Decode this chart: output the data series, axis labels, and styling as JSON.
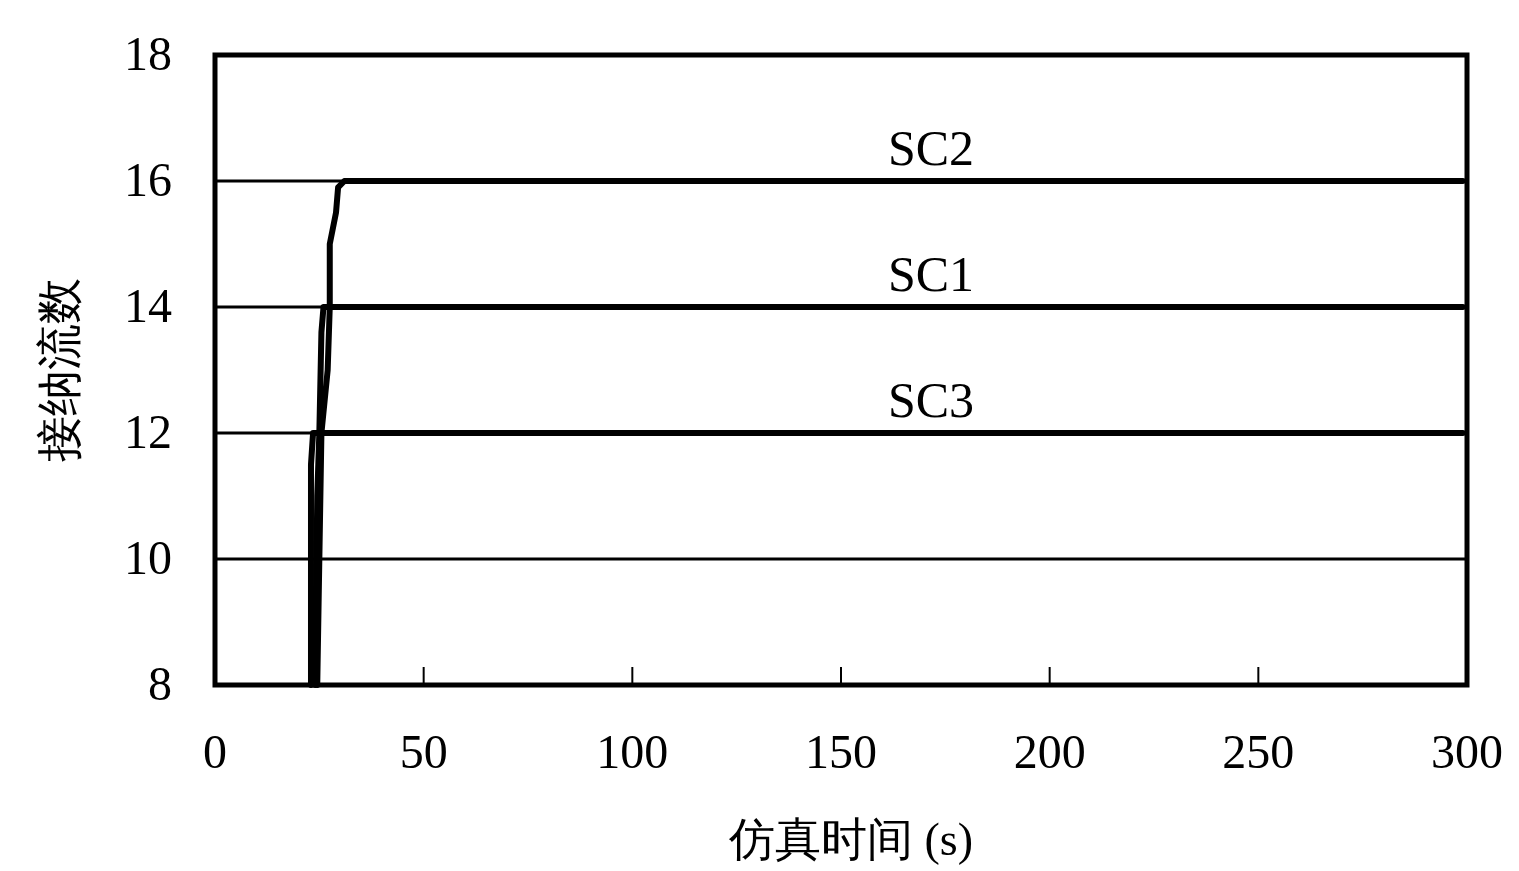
{
  "chart_data": {
    "type": "line",
    "xlabel": "仿真时间 (s)",
    "ylabel": "接纳流数",
    "xlim": [
      0,
      300
    ],
    "ylim": [
      8,
      18
    ],
    "xticks": [
      0,
      50,
      100,
      150,
      200,
      250,
      300
    ],
    "yticks": [
      8,
      10,
      12,
      14,
      16,
      18
    ],
    "grid": "y",
    "marker": "none",
    "line_style": "solid",
    "series": [
      {
        "name": "SC2",
        "color": "#000000",
        "x": [
          24.5,
          25.5,
          27,
          27.5,
          27.5,
          29,
          29.5,
          31,
          299
        ],
        "values": [
          8,
          12,
          13,
          14,
          15,
          15.5,
          15.9,
          16,
          16
        ]
      },
      {
        "name": "SC1",
        "color": "#000000",
        "x": [
          24,
          24.5,
          25,
          25.5,
          26,
          299
        ],
        "values": [
          8,
          11,
          12,
          13.6,
          14,
          14
        ]
      },
      {
        "name": "SC3",
        "color": "#000000",
        "x": [
          23,
          23,
          23.5,
          299
        ],
        "values": [
          8,
          11.5,
          12,
          12
        ]
      }
    ]
  }
}
